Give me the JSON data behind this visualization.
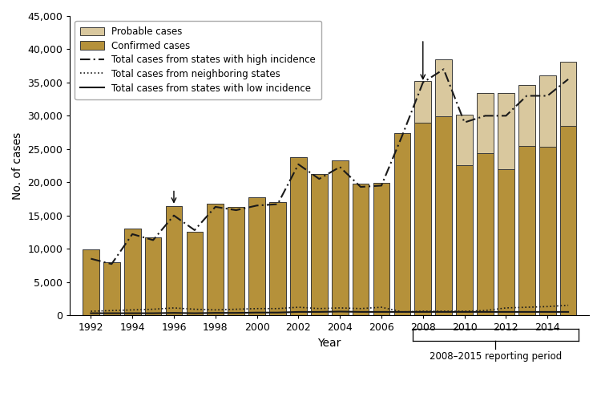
{
  "years": [
    1992,
    1993,
    1994,
    1995,
    1996,
    1997,
    1998,
    1999,
    2000,
    2001,
    2002,
    2003,
    2004,
    2005,
    2006,
    2007,
    2008,
    2009,
    2010,
    2011,
    2012,
    2013,
    2014,
    2015
  ],
  "confirmed_cases": [
    9895,
    8000,
    13000,
    11700,
    16455,
    12500,
    16801,
    16273,
    17730,
    17029,
    23763,
    21273,
    23305,
    19804,
    19931,
    27444,
    28921,
    29959,
    22561,
    24364,
    22014,
    25431,
    25359,
    28453
  ],
  "probable_cases": [
    0,
    0,
    0,
    0,
    0,
    0,
    0,
    0,
    0,
    0,
    0,
    0,
    0,
    0,
    0,
    0,
    6277,
    8509,
    7597,
    9003,
    11427,
    9247,
    10759,
    9616
  ],
  "high_incidence": [
    8500,
    7700,
    12200,
    11300,
    15000,
    12800,
    16300,
    15800,
    16500,
    16700,
    22700,
    20500,
    22300,
    19300,
    19500,
    27000,
    35000,
    37000,
    29000,
    30000,
    30000,
    33000,
    33000,
    35500
  ],
  "neighboring_states": [
    600,
    700,
    800,
    900,
    1100,
    900,
    800,
    900,
    1000,
    1000,
    1200,
    1000,
    1100,
    1000,
    1200,
    500,
    600,
    600,
    600,
    700,
    1100,
    1200,
    1300,
    1500
  ],
  "low_incidence": [
    300,
    300,
    300,
    300,
    350,
    300,
    350,
    350,
    400,
    400,
    500,
    500,
    550,
    500,
    500,
    500,
    500,
    500,
    500,
    500,
    500,
    500,
    500,
    500
  ],
  "confirmed_color": "#b5913a",
  "probable_color": "#d9c89e",
  "bar_edge_color": "#3a3a3a",
  "line_color": "#1a1a1a",
  "ylim": [
    0,
    45000
  ],
  "yticks": [
    0,
    5000,
    10000,
    15000,
    20000,
    25000,
    30000,
    35000,
    40000,
    45000
  ],
  "xlim": [
    1991,
    2016
  ],
  "xticks": [
    1992,
    1994,
    1996,
    1998,
    2000,
    2002,
    2004,
    2006,
    2008,
    2010,
    2012,
    2014
  ],
  "ylabel": "No. of cases",
  "xlabel": "Year",
  "brace_label": "2008–2015 reporting period",
  "brace_x1": 2007.5,
  "brace_x2": 2015.5
}
